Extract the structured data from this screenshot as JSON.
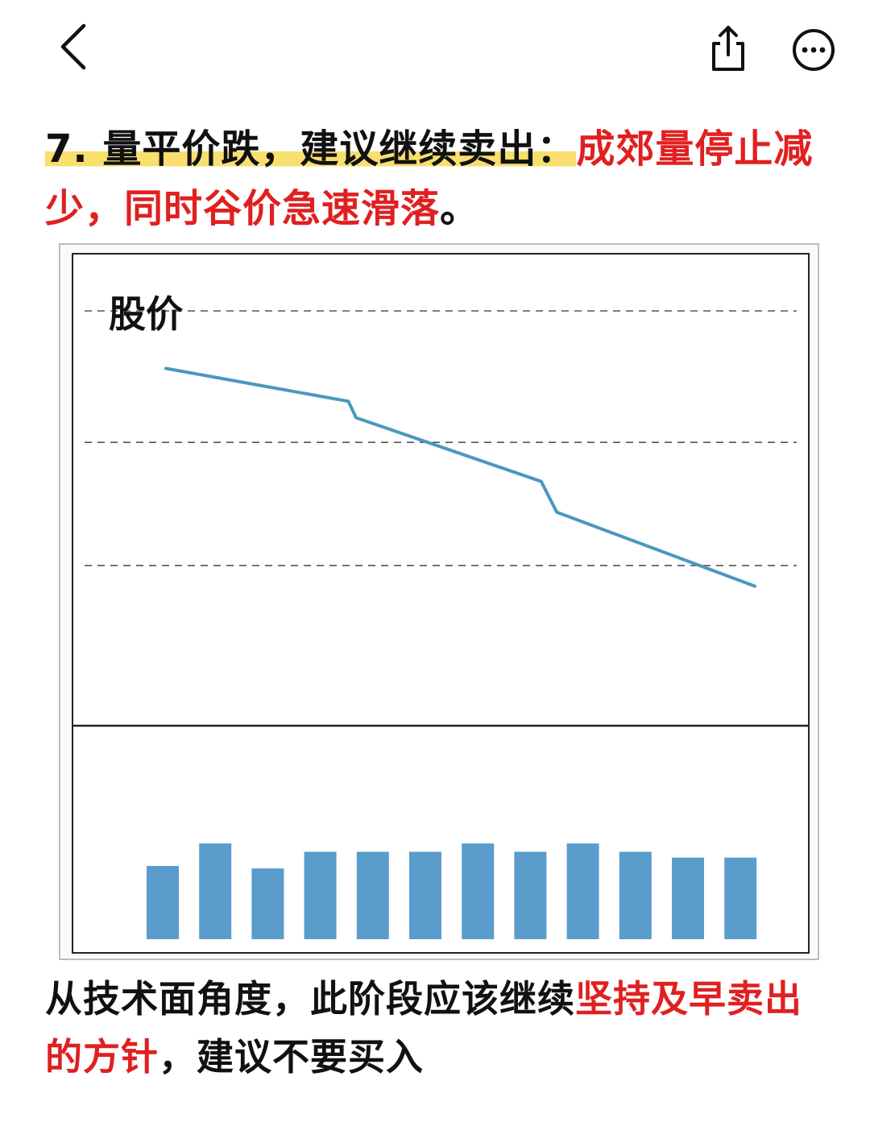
{
  "nav": {
    "back_icon": "chevron-left-icon",
    "share_icon": "share-icon",
    "more_icon": "more-horizontal-icon"
  },
  "heading": {
    "highlighted": "7. 量平价跌，建议继续卖出：",
    "red": "成郊量停止减少，同时谷价急速滑落",
    "end": "。"
  },
  "chart_data": {
    "type": "line",
    "title": "股价",
    "price_line": {
      "color": "#4a98be",
      "points": [
        [
          0,
          8.6
        ],
        [
          3.5,
          7.8
        ],
        [
          3.65,
          7.4
        ],
        [
          7.2,
          5.85
        ],
        [
          7.5,
          5.1
        ],
        [
          11.3,
          3.3
        ]
      ]
    },
    "gridlines": [
      10,
      6.8,
      3.8
    ],
    "price_range": [
      0,
      10
    ],
    "volume": {
      "color": "#5a9ccb",
      "values": [
        88,
        115,
        85,
        105,
        105,
        105,
        115,
        105,
        115,
        105,
        98,
        98
      ]
    }
  },
  "footer": {
    "black1": "从技术面角度，此阶段应该继续",
    "red": "坚持及早卖出的方针",
    "black2": "，建议不要买入"
  }
}
